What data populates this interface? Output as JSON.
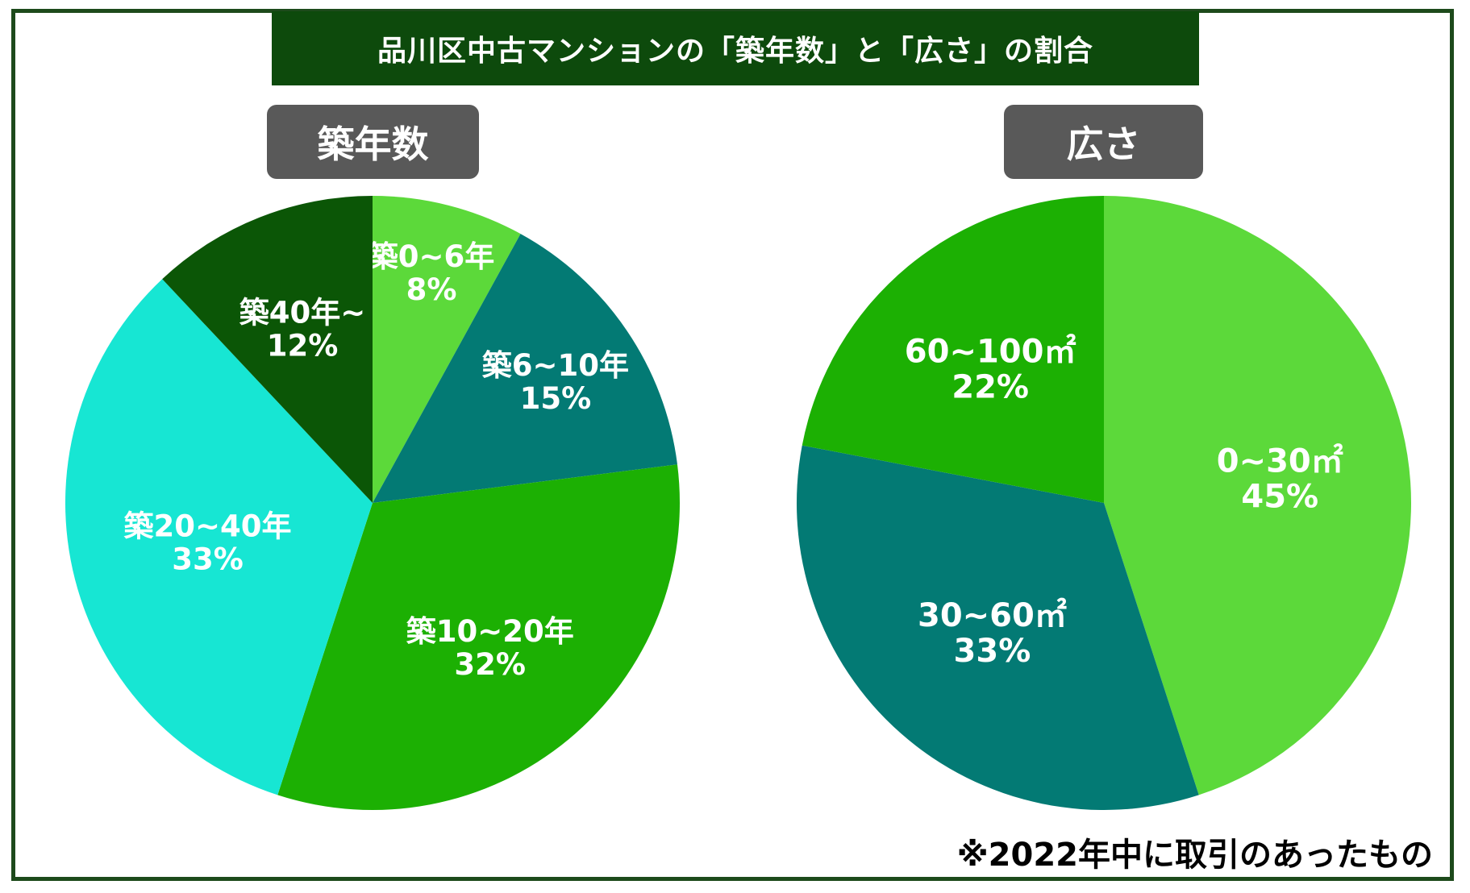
{
  "title": "品川区中古マンションの「築年数」と「広さ」の割合",
  "note": "※2022年中に取引のあったもの",
  "chart_data": [
    {
      "type": "pie",
      "title": "築年数",
      "slices": [
        {
          "label": "築0~6年",
          "value": 8,
          "display": "8%",
          "color": "#5cd93a"
        },
        {
          "label": "築6~10年",
          "value": 15,
          "display": "15%",
          "color": "#037a74"
        },
        {
          "label": "築10~20年",
          "value": 32,
          "display": "32%",
          "color": "#1cb003"
        },
        {
          "label": "築20~40年",
          "value": 33,
          "display": "33%",
          "color": "#17e6d3"
        },
        {
          "label": "築40年~",
          "value": 12,
          "display": "12%",
          "color": "#0b5606"
        }
      ]
    },
    {
      "type": "pie",
      "title": "広さ",
      "slices": [
        {
          "label": "0~30㎡",
          "value": 45,
          "display": "45%",
          "color": "#5cd93a"
        },
        {
          "label": "30~60㎡",
          "value": 33,
          "display": "33%",
          "color": "#037a74"
        },
        {
          "label": "60~100㎡",
          "value": 22,
          "display": "22%",
          "color": "#1cb003"
        }
      ]
    }
  ]
}
